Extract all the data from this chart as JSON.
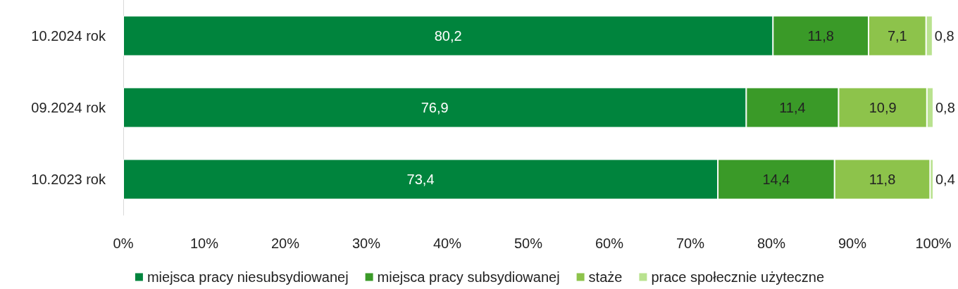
{
  "chart_data": {
    "type": "bar",
    "orientation": "horizontal",
    "stacked": true,
    "legend": "bottom",
    "grid": false,
    "categories": [
      "10.2024 rok",
      "09.2024 rok",
      "10.2023 rok"
    ],
    "xlim": [
      0,
      100
    ],
    "xticks": [
      {
        "value": 0,
        "label": "0%"
      },
      {
        "value": 10,
        "label": "10%"
      },
      {
        "value": 20,
        "label": "20%"
      },
      {
        "value": 30,
        "label": "30%"
      },
      {
        "value": 40,
        "label": "40%"
      },
      {
        "value": 50,
        "label": "50%"
      },
      {
        "value": 60,
        "label": "60%"
      },
      {
        "value": 70,
        "label": "70%"
      },
      {
        "value": 80,
        "label": "80%"
      },
      {
        "value": 90,
        "label": "90%"
      },
      {
        "value": 100,
        "label": "100%"
      }
    ],
    "series": [
      {
        "name": "miejsca pracy niesubsydiowanej",
        "color": "#00843d",
        "values": [
          80.2,
          76.9,
          73.4
        ],
        "value_labels": [
          "80,2",
          "76,9",
          "73,4"
        ]
      },
      {
        "name": "miejsca pracy subsydiowanej",
        "color": "#3a9a28",
        "values": [
          11.8,
          11.4,
          14.4
        ],
        "value_labels": [
          "11,8",
          "11,4",
          "14,4"
        ]
      },
      {
        "name": "staże",
        "color": "#8dc34b",
        "values": [
          7.1,
          10.9,
          11.8
        ],
        "value_labels": [
          "7,1",
          "10,9",
          "11,8"
        ]
      },
      {
        "name": "prace społecznie użyteczne",
        "color": "#b9e28f",
        "values": [
          0.8,
          0.8,
          0.4
        ],
        "value_labels": [
          "0,8",
          "0,8",
          "0,4"
        ]
      }
    ]
  }
}
